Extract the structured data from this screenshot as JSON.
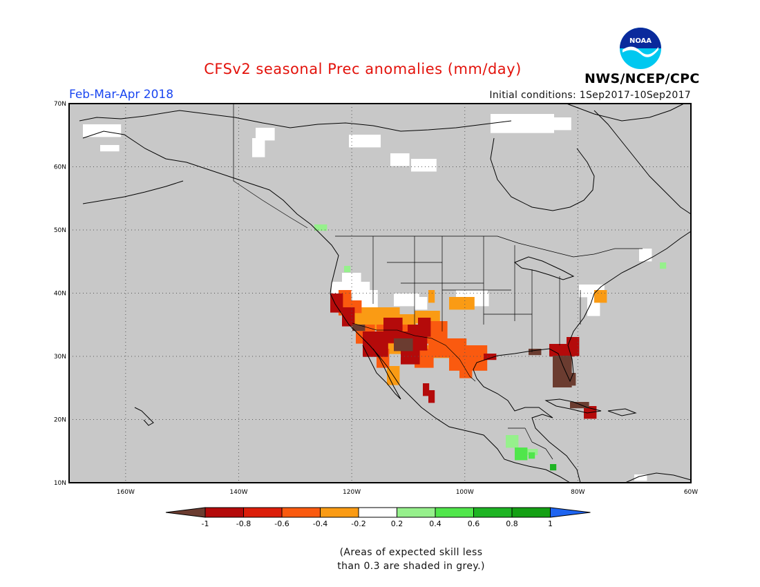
{
  "title": "CFSv2 seasonal Prec anomalies (mm/day)",
  "period": "Feb-Mar-Apr 2018",
  "initial_conditions": "Initial conditions: 1Sep2017-10Sep2017",
  "agency": "NWS/NCEP/CPC",
  "logo": {
    "text": "NOAA",
    "icon": "noaa-logo-icon"
  },
  "map": {
    "lon_labels": [
      "160W",
      "140W",
      "120W",
      "100W",
      "80W",
      "60W"
    ],
    "lat_labels": [
      "70N",
      "60N",
      "50N",
      "40N",
      "30N",
      "20N",
      "10N"
    ],
    "lon_range": [
      -170,
      -60
    ],
    "lat_range": [
      10,
      70
    ],
    "grid": "dotted",
    "skill_mask_color": "#c8c8c8"
  },
  "colorbar": {
    "tick_labels": [
      "-1",
      "-0.8",
      "-0.6",
      "-0.4",
      "-0.2",
      "0.2",
      "0.4",
      "0.6",
      "0.8",
      "1"
    ],
    "colors": [
      "#6b3c30",
      "#b40a0a",
      "#dc1e0a",
      "#fa5a0f",
      "#fa9b14",
      "#ffffff",
      "#96f08c",
      "#50e64b",
      "#1eb423",
      "#14a014",
      "#1e64f0"
    ]
  },
  "note": {
    "line1": "(Areas of expected skill less",
    "line2": "than 0.3 are shaded in grey.)"
  }
}
